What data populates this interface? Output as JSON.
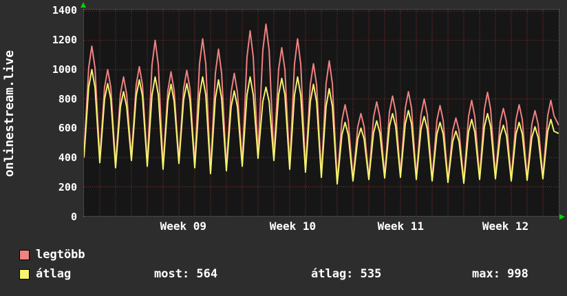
{
  "chart_data": {
    "type": "line",
    "vertical_label": "onlinestream.live",
    "ylim": [
      0,
      1400
    ],
    "yticks": [
      0,
      200,
      400,
      600,
      800,
      1000,
      1200,
      1400
    ],
    "days": 30,
    "x_weeks": [
      {
        "label": "Week 09",
        "center_day": 6.3
      },
      {
        "label": "Week 10",
        "center_day": 13.2
      },
      {
        "label": "Week 11",
        "center_day": 20.0
      },
      {
        "label": "Week 12",
        "center_day": 26.6
      }
    ],
    "grid": {
      "horizontal": true,
      "vertical": "daily",
      "color": "#8a3c3c"
    },
    "series": [
      {
        "name": "legtöbb",
        "color": "#f28181",
        "daily_peak": [
          1160,
          1000,
          950,
          1020,
          1200,
          985,
          995,
          1210,
          1140,
          975,
          1265,
          1310,
          1150,
          1210,
          1040,
          1060,
          760,
          700,
          780,
          820,
          850,
          800,
          755,
          670,
          790,
          845,
          735,
          760,
          720,
          790
        ],
        "daily_valley": [
          420,
          390,
          350,
          400,
          360,
          340,
          380,
          350,
          300,
          330,
          360,
          420,
          400,
          340,
          320,
          280,
          230,
          255,
          260,
          270,
          280,
          260,
          250,
          240,
          235,
          260,
          270,
          250,
          255,
          265
        ],
        "end_value": 620
      },
      {
        "name": "átlag",
        "color": "#f4f46e",
        "daily_peak": [
          1000,
          905,
          850,
          930,
          950,
          900,
          905,
          950,
          930,
          855,
          950,
          880,
          940,
          950,
          900,
          870,
          640,
          600,
          650,
          700,
          720,
          680,
          640,
          580,
          660,
          700,
          620,
          640,
          610,
          660
        ],
        "daily_valley": [
          400,
          365,
          330,
          380,
          340,
          320,
          360,
          330,
          290,
          310,
          340,
          395,
          380,
          320,
          300,
          265,
          220,
          240,
          250,
          260,
          265,
          250,
          240,
          230,
          225,
          250,
          255,
          240,
          245,
          255
        ],
        "end_value": 564
      }
    ],
    "stats": {
      "most": 564,
      "atlag": 535,
      "max": 998
    }
  },
  "footer": {
    "legend": [
      {
        "label": "legtöbb",
        "color": "#f28181"
      },
      {
        "label": "átlag",
        "color": "#f4f46e"
      }
    ],
    "stats": [
      {
        "text": "most: 564"
      },
      {
        "text": "átlag: 535"
      },
      {
        "text": "max: 998"
      }
    ]
  },
  "colors": {
    "background": "#2d2d2d",
    "plot_background": "#161616",
    "grid": "#8a3c3c",
    "text": "#ffffff",
    "arrow": "#00d400"
  }
}
